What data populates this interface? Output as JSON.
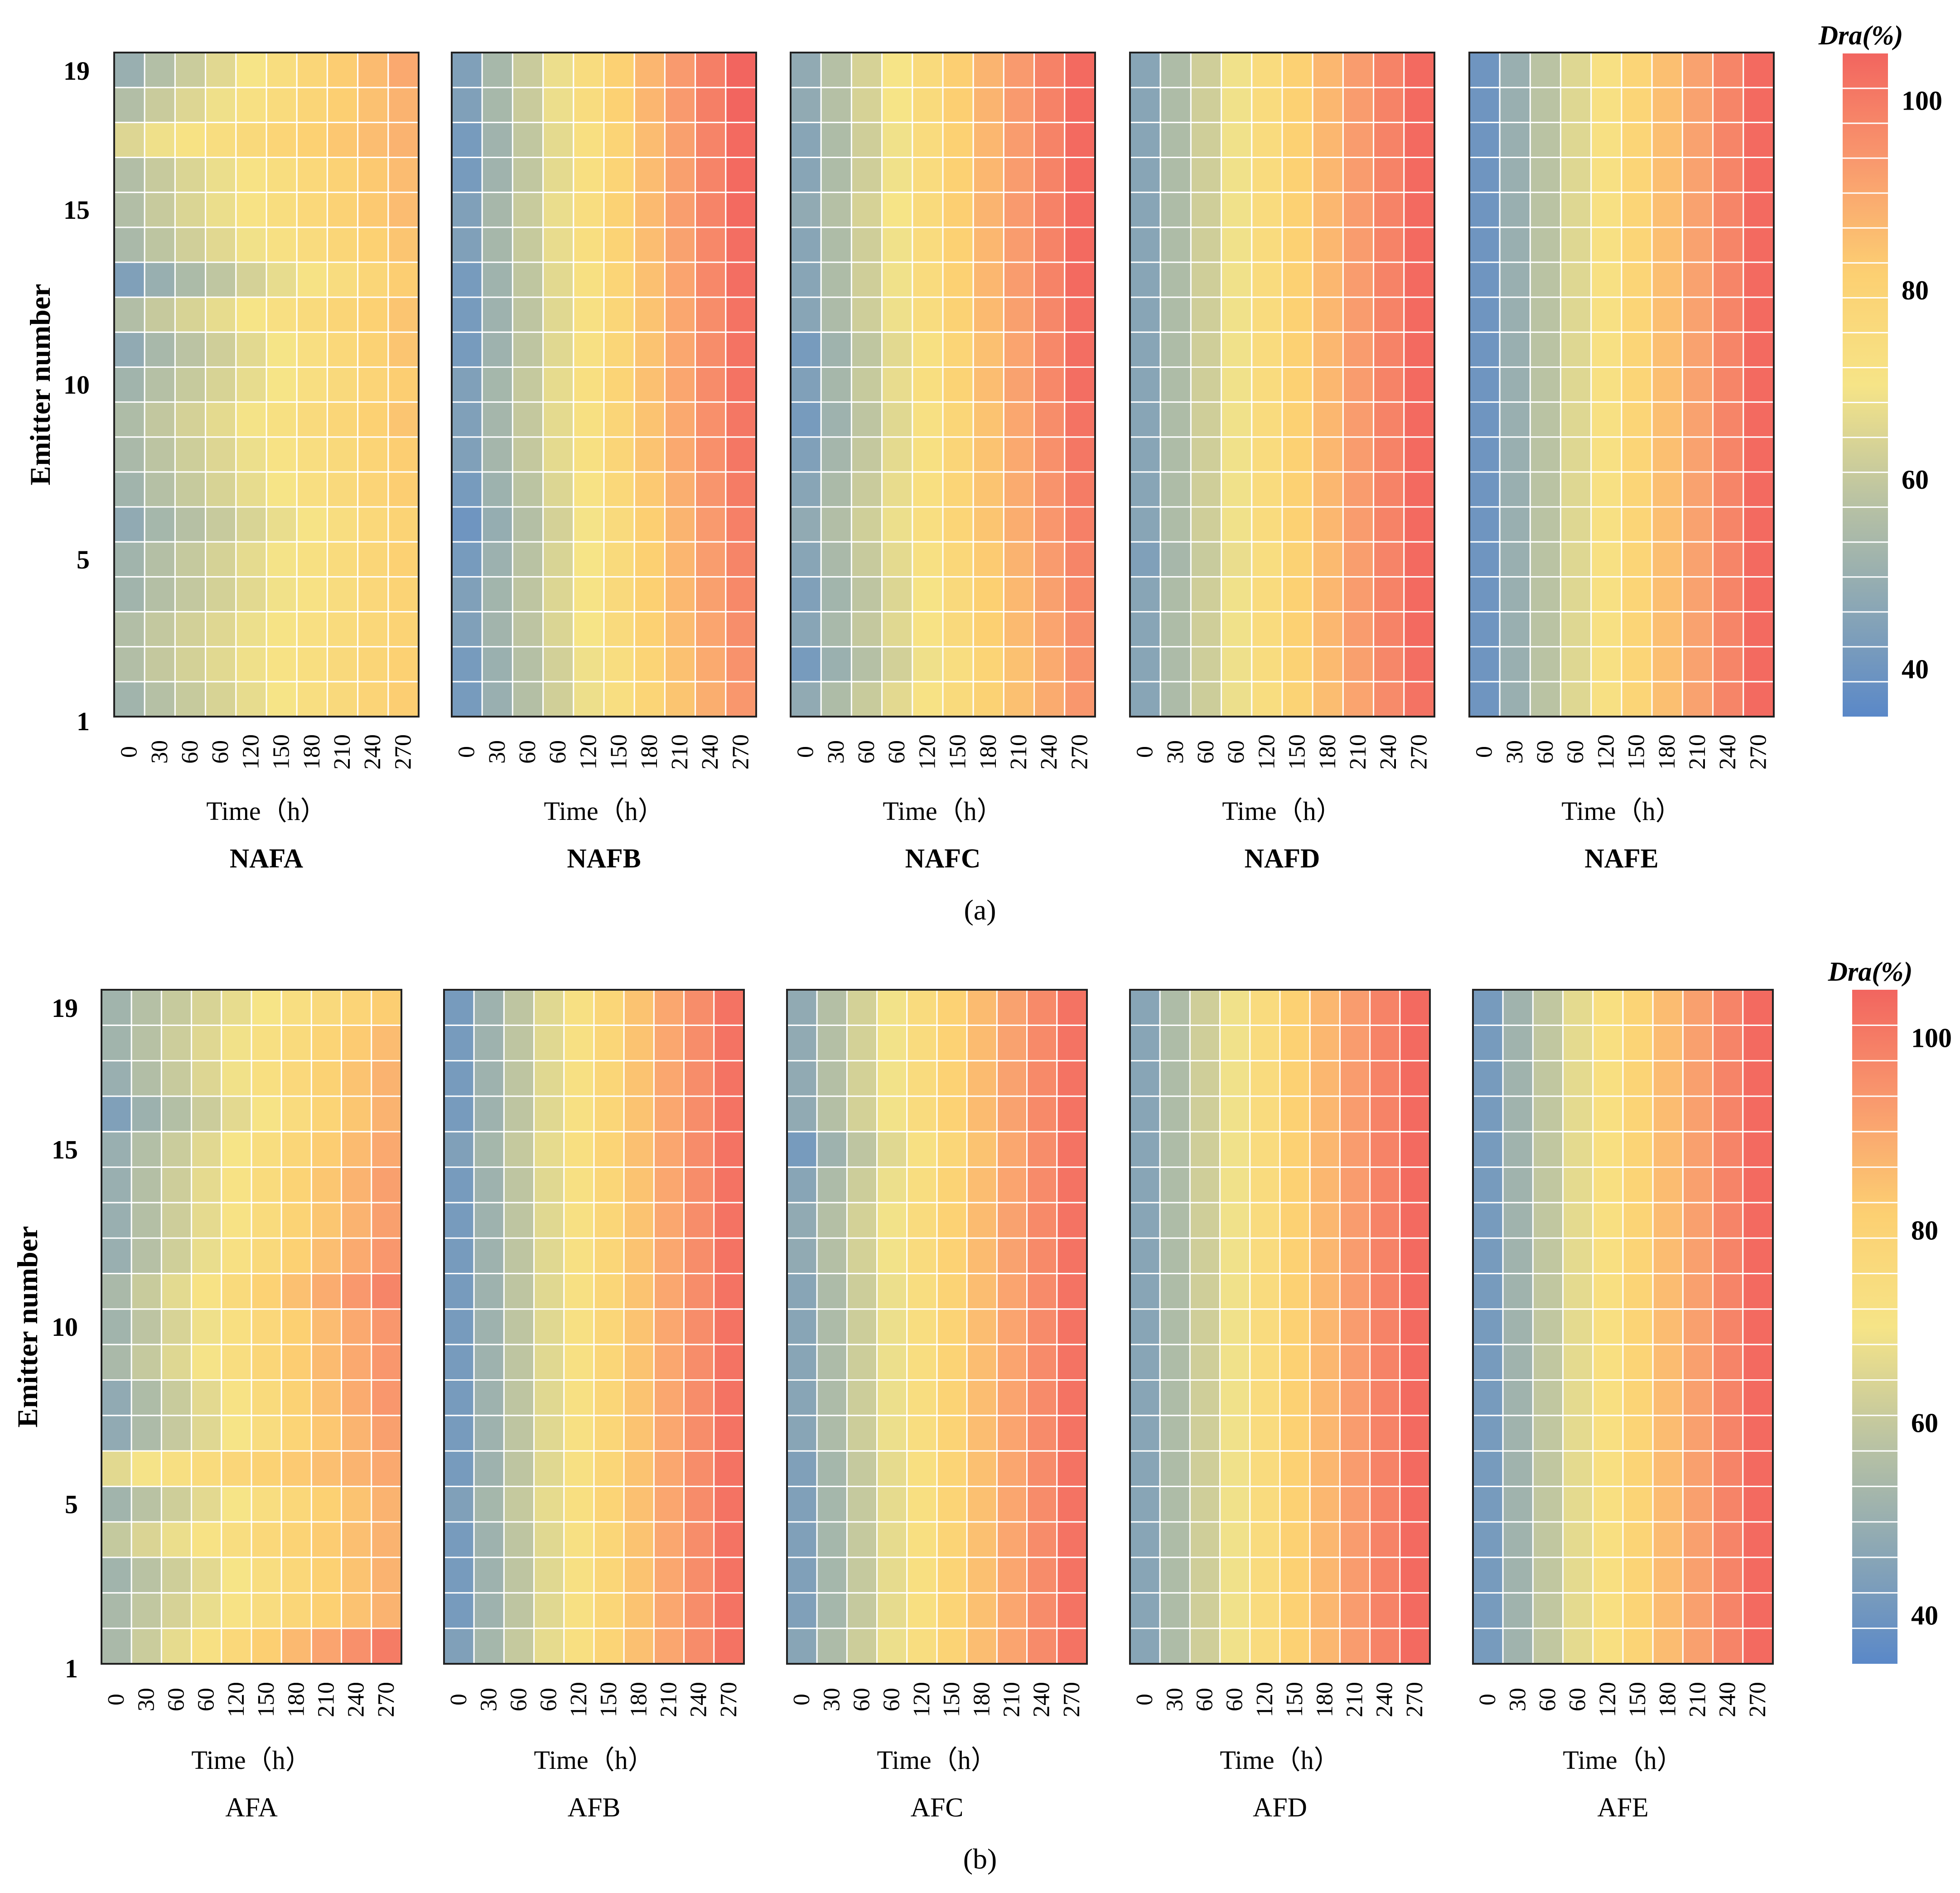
{
  "chart_data": [
    {
      "type": "heatmap",
      "caption": "(a)",
      "ylabel": "Emitter  number",
      "yticks": [
        "1",
        "5",
        "10",
        "15",
        "19"
      ],
      "rows": 19,
      "xticks": [
        "0",
        "30",
        "60",
        "60",
        "120",
        "150",
        "180",
        "210",
        "240",
        "270"
      ],
      "colorbar": {
        "title": "Dra(%)",
        "ticks": [
          "40",
          "60",
          "80",
          "100"
        ],
        "range": [
          35,
          105
        ],
        "colors": [
          "#5a88c8",
          "#8ba7b5",
          "#bcc4a2",
          "#f6e487",
          "#fcd072",
          "#f99a6e",
          "#f2655f"
        ]
      },
      "panels": [
        {
          "title": "NAFA",
          "title_bold": true,
          "xlabel": "Time（h）",
          "start": [
            88,
            84,
            84,
            88,
            88,
            92,
            88,
            86,
            85,
            88,
            92,
            84,
            96,
            86,
            84,
            84,
            75,
            84,
            90
          ],
          "end": [
            58,
            59,
            60,
            60,
            59,
            60,
            58,
            58,
            56,
            58,
            56,
            56,
            58,
            56,
            54,
            54,
            52,
            52,
            50
          ]
        },
        {
          "title": "NAFB",
          "title_bold": true,
          "xlabel": "Time（h）",
          "start": [
            98,
            98,
            96,
            96,
            98,
            100,
            98,
            96,
            96,
            96,
            98,
            98,
            98,
            96,
            96,
            98,
            98,
            96,
            96
          ],
          "end": [
            46,
            45,
            44,
            43,
            42,
            41,
            40,
            39,
            39,
            38,
            38,
            38,
            37,
            37,
            36,
            36,
            36,
            35,
            35
          ]
        },
        {
          "title": "NAFC",
          "title_bold": true,
          "xlabel": "Time（h）",
          "start": [
            92,
            98,
            94,
            96,
            94,
            92,
            94,
            96,
            98,
            96,
            98,
            94,
            94,
            94,
            92,
            94,
            94,
            92,
            92
          ],
          "end": [
            46,
            45,
            44,
            43,
            42,
            41,
            40,
            39,
            38,
            37,
            37,
            37,
            36,
            36,
            36,
            36,
            36,
            36,
            36
          ]
        },
        {
          "title": "NAFD",
          "title_bold": true,
          "xlabel": "Time（h）",
          "start": [
            94,
            94,
            94,
            94,
            96,
            94,
            94,
            94,
            94,
            94,
            94,
            94,
            94,
            94,
            94,
            94,
            94,
            94,
            94
          ],
          "end": [
            38,
            37,
            36,
            36,
            36,
            36,
            36,
            36,
            36,
            36,
            36,
            36,
            36,
            36,
            36,
            36,
            36,
            36,
            36
          ]
        },
        {
          "title": "NAFE",
          "title_bold": true,
          "xlabel": "Time（h）",
          "start": [
            100,
            100,
            100,
            100,
            100,
            100,
            100,
            100,
            100,
            100,
            100,
            100,
            100,
            100,
            100,
            100,
            100,
            100,
            100
          ],
          "end": [
            36,
            36,
            36,
            36,
            36,
            36,
            36,
            36,
            36,
            36,
            36,
            36,
            36,
            36,
            36,
            36,
            36,
            36,
            36
          ]
        }
      ]
    },
    {
      "type": "heatmap",
      "caption": "(b)",
      "ylabel": "Emitter  number",
      "yticks": [
        "1",
        "5",
        "10",
        "15",
        "19"
      ],
      "rows": 19,
      "xticks": [
        "0",
        "30",
        "60",
        "60",
        "120",
        "150",
        "180",
        "210",
        "240",
        "270"
      ],
      "colorbar": {
        "title": "Dra(%)",
        "ticks": [
          "40",
          "60",
          "80",
          "100"
        ],
        "range": [
          35,
          105
        ],
        "colors": [
          "#5a88c8",
          "#8ba7b5",
          "#bcc4a2",
          "#f6e487",
          "#fcd072",
          "#f99a6e",
          "#f2655f"
        ]
      },
      "panels": [
        {
          "title": "AFA",
          "title_bold": false,
          "xlabel": "Time（h）",
          "start": [
            86,
            86,
            88,
            80,
            88,
            74,
            92,
            92,
            86,
            88,
            86,
            90,
            90,
            90,
            90,
            96,
            90,
            88,
            88
          ],
          "end": [
            40,
            52,
            52,
            52,
            52,
            50,
            48,
            46,
            46,
            46,
            42,
            46,
            48,
            48,
            50,
            52,
            52,
            54,
            58
          ]
        },
        {
          "title": "AFB",
          "title_bold": false,
          "xlabel": "Time（h）",
          "start": [
            96,
            98,
            98,
            98,
            96,
            98,
            98,
            98,
            98,
            98,
            98,
            98,
            98,
            98,
            96,
            98,
            98,
            98,
            98
          ],
          "end": [
            38,
            38,
            38,
            38,
            38,
            38,
            38,
            38,
            38,
            38,
            38,
            38,
            38,
            38,
            38,
            38,
            38,
            38,
            38
          ]
        },
        {
          "title": "AFC",
          "title_bold": false,
          "xlabel": "Time（h）",
          "start": [
            94,
            96,
            96,
            96,
            96,
            96,
            94,
            94,
            94,
            94,
            94,
            92,
            92,
            94,
            98,
            92,
            92,
            92,
            92
          ],
          "end": [
            38,
            38,
            38,
            38,
            38,
            38,
            38,
            38,
            38,
            38,
            38,
            38,
            38,
            38,
            38,
            38,
            38,
            38,
            38
          ]
        },
        {
          "title": "AFD",
          "title_bold": false,
          "xlabel": "Time（h）",
          "start": [
            94,
            94,
            94,
            94,
            94,
            94,
            94,
            94,
            94,
            94,
            94,
            94,
            94,
            94,
            94,
            94,
            94,
            94,
            94
          ],
          "end": [
            36,
            36,
            36,
            36,
            36,
            36,
            36,
            36,
            36,
            36,
            36,
            36,
            36,
            36,
            36,
            36,
            36,
            36,
            36
          ]
        },
        {
          "title": "AFE",
          "title_bold": false,
          "xlabel": "Time（h）",
          "start": [
            98,
            98,
            98,
            98,
            98,
            98,
            98,
            98,
            98,
            98,
            98,
            98,
            98,
            98,
            98,
            98,
            98,
            98,
            98
          ],
          "end": [
            36,
            36,
            36,
            36,
            36,
            36,
            36,
            36,
            36,
            36,
            36,
            36,
            36,
            36,
            36,
            36,
            36,
            36,
            36
          ]
        }
      ]
    }
  ]
}
